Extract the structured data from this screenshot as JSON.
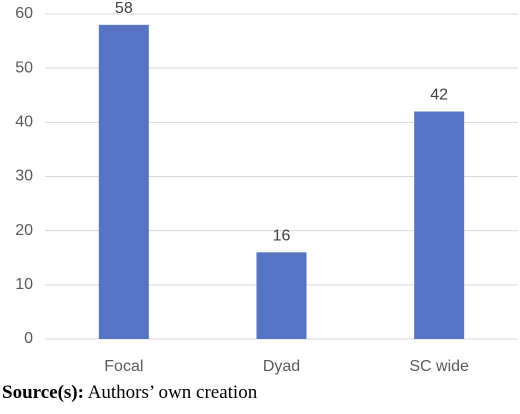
{
  "chart_data": {
    "type": "bar",
    "categories": [
      "Focal",
      "Dyad",
      "SC wide"
    ],
    "values": [
      58,
      16,
      42
    ],
    "color": "#5673c4",
    "ylim": [
      0,
      60
    ],
    "yticks": [
      0,
      10,
      20,
      30,
      40,
      50,
      60
    ],
    "grid": true
  },
  "source": {
    "label": "Source(s):",
    "text": "Authors’ own creation"
  }
}
